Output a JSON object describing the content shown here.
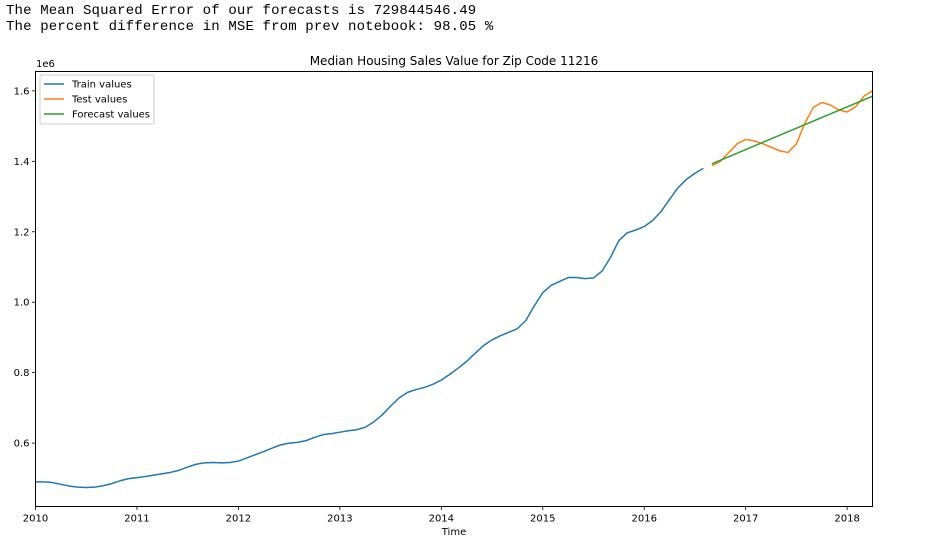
{
  "output": {
    "line1": "The Mean Squared Error of our forecasts is 729844546.49",
    "line2": "The percent difference in MSE from prev notebook: 98.05 %"
  },
  "chart_data": {
    "type": "line",
    "title": "Median Housing Sales Value for Zip Code 11216",
    "xlabel": "Time",
    "ylabel": "",
    "y_offset_label": "1e6",
    "xlim": [
      2010.0,
      2018.25
    ],
    "ylim": [
      0.42,
      1.655
    ],
    "x_ticks": [
      2010,
      2011,
      2012,
      2013,
      2014,
      2015,
      2016,
      2017,
      2018
    ],
    "x_tick_labels": [
      "2010",
      "2011",
      "2012",
      "2013",
      "2014",
      "2015",
      "2016",
      "2017",
      "2018"
    ],
    "y_ticks": [
      0.6,
      0.8,
      1.0,
      1.2,
      1.4,
      1.6
    ],
    "y_tick_labels": [
      "0.6",
      "0.8",
      "1.0",
      "1.2",
      "1.4",
      "1.6"
    ],
    "grid": false,
    "legend_position": "top-left",
    "series": [
      {
        "name": "Train values",
        "color": "#1f77b4",
        "x": [
          2010.0,
          2010.083,
          2010.167,
          2010.25,
          2010.333,
          2010.417,
          2010.5,
          2010.583,
          2010.667,
          2010.75,
          2010.833,
          2010.917,
          2011.0,
          2011.083,
          2011.167,
          2011.25,
          2011.333,
          2011.417,
          2011.5,
          2011.583,
          2011.667,
          2011.75,
          2011.833,
          2011.917,
          2012.0,
          2012.083,
          2012.167,
          2012.25,
          2012.333,
          2012.417,
          2012.5,
          2012.583,
          2012.667,
          2012.75,
          2012.833,
          2012.917,
          2013.0,
          2013.083,
          2013.167,
          2013.25,
          2013.333,
          2013.417,
          2013.5,
          2013.583,
          2013.667,
          2013.75,
          2013.833,
          2013.917,
          2014.0,
          2014.083,
          2014.167,
          2014.25,
          2014.333,
          2014.417,
          2014.5,
          2014.583,
          2014.667,
          2014.75,
          2014.833,
          2014.917,
          2015.0,
          2015.083,
          2015.167,
          2015.25,
          2015.333,
          2015.417,
          2015.5,
          2015.583,
          2015.667,
          2015.75,
          2015.833,
          2015.917,
          2016.0,
          2016.083,
          2016.167,
          2016.25,
          2016.333,
          2016.417,
          2016.5,
          2016.583
        ],
        "values": [
          0.49,
          0.49,
          0.488,
          0.483,
          0.478,
          0.475,
          0.474,
          0.475,
          0.479,
          0.485,
          0.493,
          0.499,
          0.502,
          0.505,
          0.509,
          0.513,
          0.517,
          0.523,
          0.532,
          0.54,
          0.544,
          0.545,
          0.544,
          0.545,
          0.549,
          0.558,
          0.567,
          0.576,
          0.586,
          0.595,
          0.6,
          0.602,
          0.607,
          0.616,
          0.624,
          0.627,
          0.631,
          0.635,
          0.638,
          0.645,
          0.66,
          0.68,
          0.705,
          0.728,
          0.744,
          0.752,
          0.758,
          0.767,
          0.779,
          0.795,
          0.813,
          0.832,
          0.855,
          0.877,
          0.893,
          0.905,
          0.915,
          0.925,
          0.948,
          0.99,
          1.027,
          1.048,
          1.059,
          1.07,
          1.07,
          1.067,
          1.069,
          1.088,
          1.127,
          1.175,
          1.197,
          1.205,
          1.215,
          1.232,
          1.258,
          1.292,
          1.325,
          1.349,
          1.366,
          1.38
        ]
      },
      {
        "name": "Test values",
        "color": "#ff7f0e",
        "x": [
          2016.667,
          2016.75,
          2016.833,
          2016.917,
          2017.0,
          2017.083,
          2017.167,
          2017.25,
          2017.333,
          2017.417,
          2017.5,
          2017.583,
          2017.667,
          2017.75,
          2017.833,
          2017.917,
          2018.0,
          2018.083,
          2018.167,
          2018.25
        ],
        "values": [
          1.387,
          1.4,
          1.425,
          1.45,
          1.462,
          1.458,
          1.45,
          1.44,
          1.43,
          1.425,
          1.45,
          1.508,
          1.553,
          1.567,
          1.56,
          1.546,
          1.54,
          1.555,
          1.585,
          1.6
        ]
      },
      {
        "name": "Forecast values",
        "color": "#2ca02c",
        "x": [
          2016.667,
          2018.25
        ],
        "values": [
          1.393,
          1.585
        ]
      }
    ]
  }
}
